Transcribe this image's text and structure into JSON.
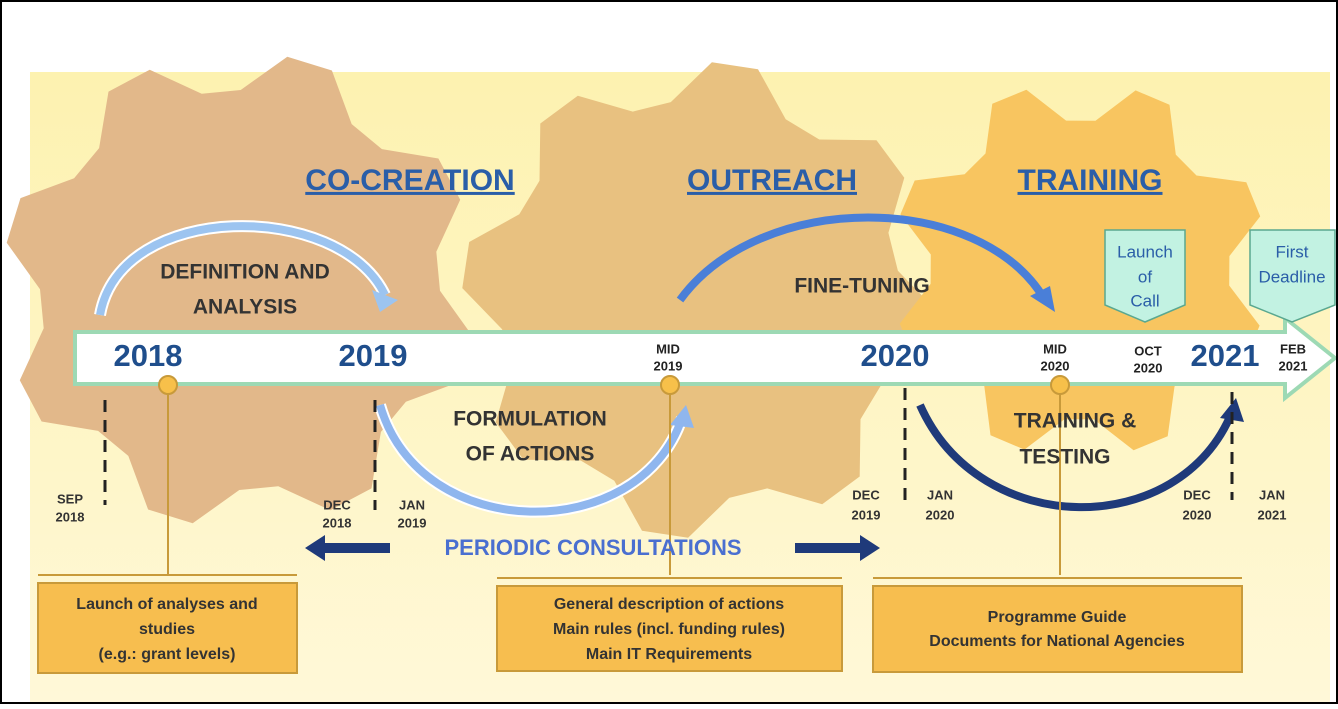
{
  "phases": [
    "CO-CREATION",
    "OUTREACH",
    "TRAINING"
  ],
  "years": [
    "2018",
    "2019",
    "2020",
    "2021"
  ],
  "timeline_marks": [
    [
      "MID",
      "2019"
    ],
    [
      "MID",
      "2020"
    ],
    [
      "OCT",
      "2020"
    ],
    [
      "FEB",
      "2021"
    ]
  ],
  "dates": [
    [
      "SEP",
      "2018"
    ],
    [
      "DEC",
      "2018"
    ],
    [
      "JAN",
      "2019"
    ],
    [
      "DEC",
      "2019"
    ],
    [
      "JAN",
      "2020"
    ],
    [
      "DEC",
      "2020"
    ],
    [
      "JAN",
      "2021"
    ]
  ],
  "activities": [
    [
      "DEFINITION AND",
      "ANALYSIS"
    ],
    [
      "FORMULATION",
      "OF ACTIONS"
    ],
    [
      "FINE-TUNING"
    ],
    [
      "TRAINING &",
      "TESTING"
    ]
  ],
  "milestones": [
    [
      "Launch",
      "of",
      "Call"
    ],
    [
      "First",
      "Deadline"
    ]
  ],
  "consultations": "PERIODIC CONSULTATIONS",
  "deliverables": [
    [
      "Launch of analyses and",
      "studies",
      "(e.g.: grant levels)"
    ],
    [
      "General description of actions",
      "Main rules (incl. funding rules)",
      "Main IT Requirements"
    ],
    [
      "Programme Guide",
      "Documents for National Agencies"
    ]
  ]
}
